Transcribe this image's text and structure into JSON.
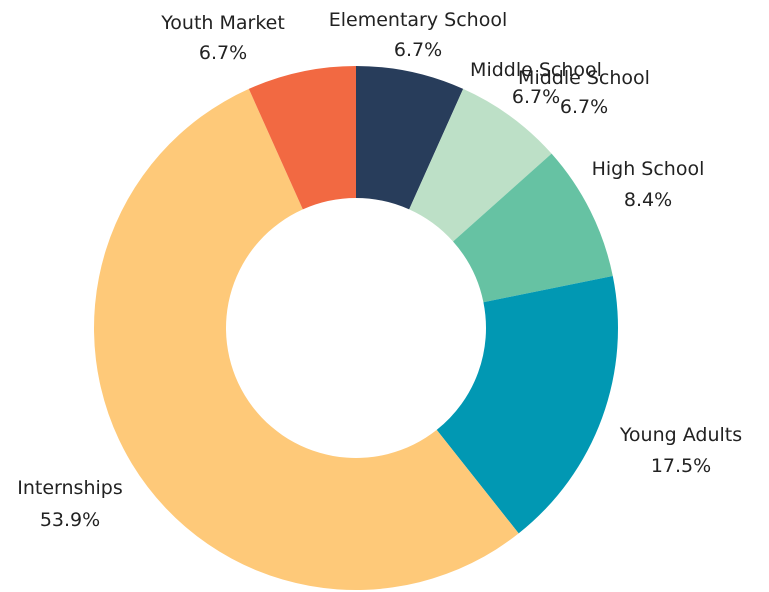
{
  "chart_data": {
    "type": "pie",
    "donut": true,
    "title": "",
    "slices": [
      {
        "label": "Elementary School",
        "value": 6.7,
        "pct_label": "6.7%",
        "color": "#283d5b"
      },
      {
        "label": "Middle School",
        "value": 6.7,
        "pct_label": "6.7%",
        "color": "#bde0c7"
      },
      {
        "label": "High School",
        "value": 8.4,
        "pct_label": "8.4%",
        "color": "#66c2a3"
      },
      {
        "label": "Young Adults",
        "value": 17.5,
        "pct_label": "17.5%",
        "color": "#0198b3"
      },
      {
        "label": "Internships",
        "value": 53.9,
        "pct_label": "53.9%",
        "color": "#fec979"
      },
      {
        "label": "Youth Market",
        "value": 6.7,
        "pct_label": "6.7%",
        "color": "#f26942"
      }
    ],
    "extra_labels": [
      {
        "label": "Middle School",
        "pct_label": "6.7%"
      }
    ]
  }
}
